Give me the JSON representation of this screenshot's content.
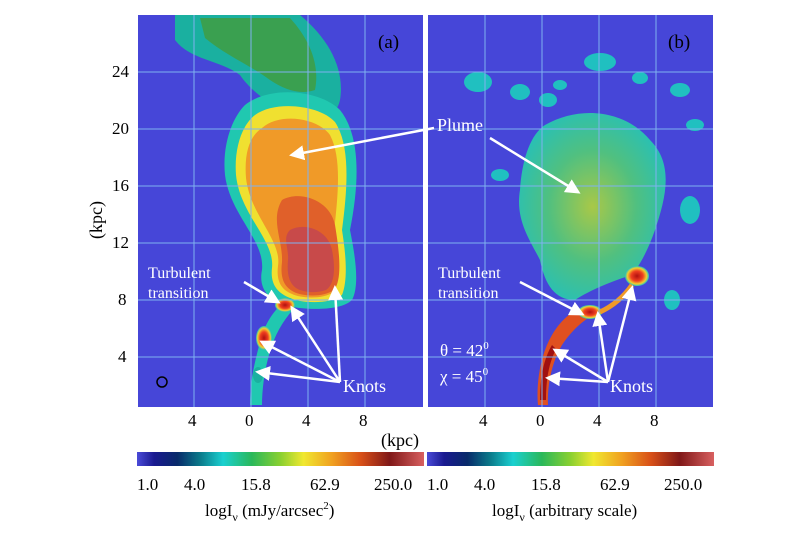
{
  "panels": [
    {
      "id": "a",
      "label": "(a)",
      "yticks": [
        "24",
        "20",
        "16",
        "12",
        "8",
        "4"
      ],
      "xticks": [
        "4",
        "0",
        "4",
        "8"
      ],
      "annotations": {
        "plume": "Plume",
        "turbulent_1": "Turbulent",
        "turbulent_2": "transition",
        "knots": "Knots"
      },
      "colorbar": {
        "ticks": [
          "1.0",
          "4.0",
          "15.8",
          "62.9",
          "250.0"
        ],
        "label_prefix": "logI",
        "label_sub": "ν",
        "label_unit": " (mJy/arcsec",
        "label_sup": "2",
        "label_close": ")"
      }
    },
    {
      "id": "b",
      "label": "(b)",
      "xticks": [
        "4",
        "0",
        "4",
        "8"
      ],
      "annotations": {
        "turbulent_1": "Turbulent",
        "turbulent_2": "transition",
        "knots": "Knots"
      },
      "params": {
        "theta": "θ = 42",
        "theta_sup": "0",
        "chi": "χ = 45",
        "chi_sup": "0"
      },
      "colorbar": {
        "ticks": [
          "1.0",
          "4.0",
          "15.8",
          "62.9",
          "250.0"
        ],
        "label_prefix": "logI",
        "label_sub": "ν",
        "label_unit": " (arbitrary scale)"
      }
    }
  ],
  "y_axis_label": "(kpc)",
  "x_axis_label": "(kpc)",
  "colors": {
    "background": "#4646d8",
    "grid": "#7fb2f0",
    "arrow": "#ffffff"
  }
}
